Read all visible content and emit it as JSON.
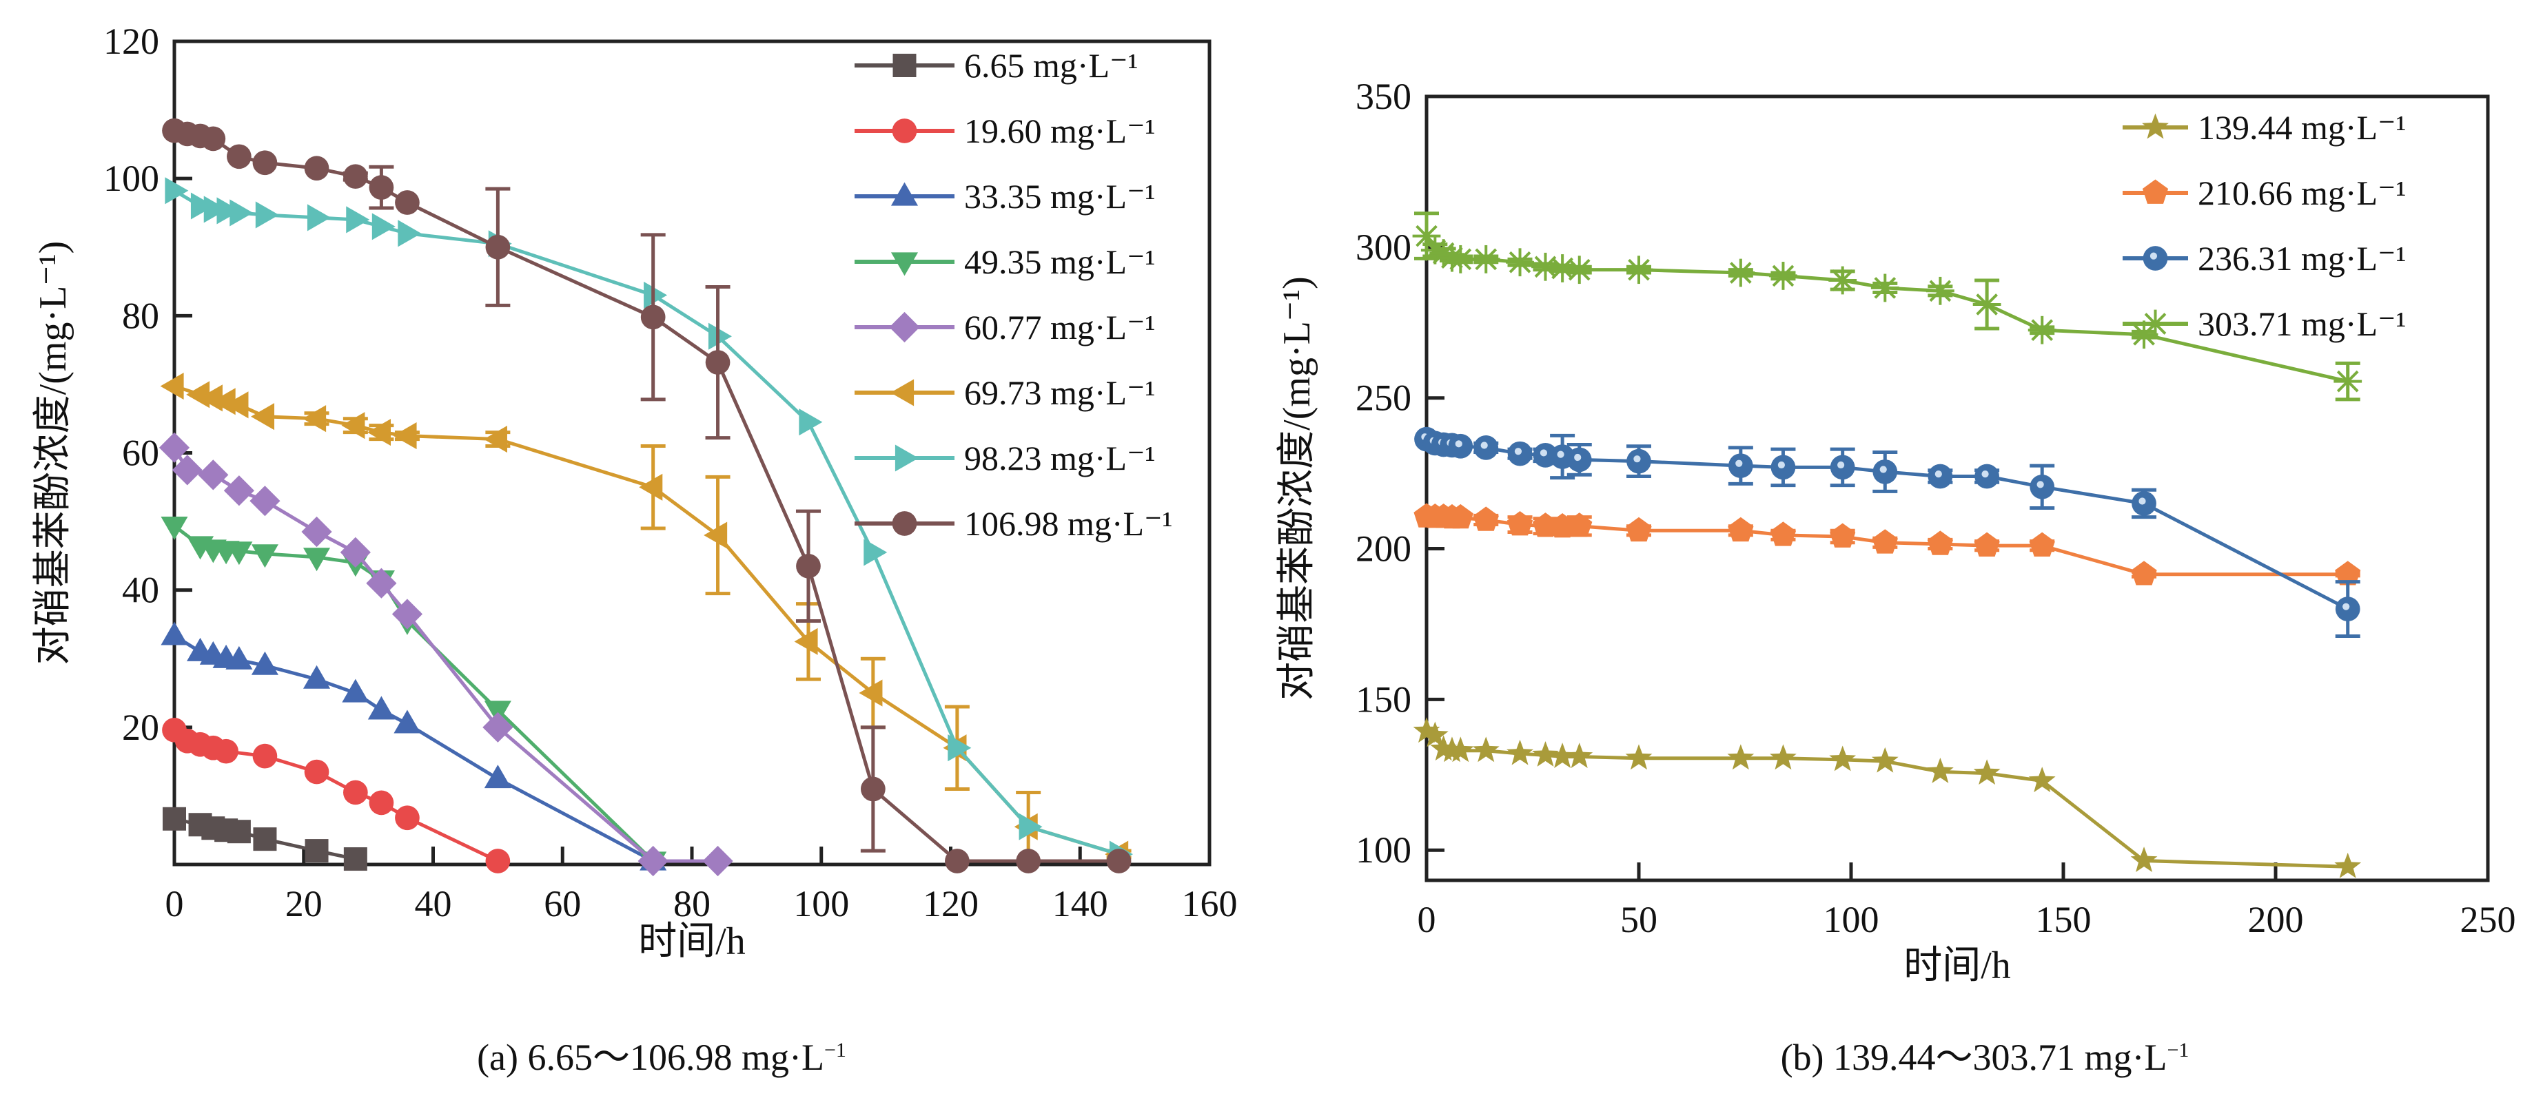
{
  "figure": {
    "panels": [
      {
        "caption": "(a) 6.65～106.98 mg·L",
        "caption_sup": "−1"
      },
      {
        "caption": "(b) 139.44～303.71 mg·L",
        "caption_sup": "−1"
      }
    ]
  },
  "chart_data": [
    {
      "type": "line",
      "id": "a",
      "title": "(a) 6.65～106.98 mg·L⁻¹",
      "xlabel": "时间/h",
      "ylabel": "对硝基苯酚浓度/(mg·L⁻¹)",
      "xlim": [
        0,
        160
      ],
      "ylim": [
        0,
        120
      ],
      "xticks": [
        0,
        20,
        40,
        60,
        80,
        100,
        120,
        140,
        160
      ],
      "yticks": [
        20,
        40,
        60,
        80,
        100,
        120
      ],
      "ytick_labels": [
        "20",
        "40",
        "60",
        "80",
        "100",
        "120"
      ],
      "xtick_labels": [
        "0",
        "20",
        "40",
        "60",
        "80",
        "100",
        "120",
        "140",
        "160"
      ],
      "grid": false,
      "legend_position": "top-right",
      "series": [
        {
          "name": "6.65 mg·L⁻¹",
          "color": "#5a5050",
          "marker": "square",
          "x": [
            0,
            4,
            6,
            8,
            10,
            14,
            22,
            28
          ],
          "y": [
            6.65,
            5.8,
            5.3,
            5.0,
            4.8,
            3.7,
            2.0,
            0.8
          ]
        },
        {
          "name": "19.60 mg·L⁻¹",
          "color": "#e84a4a",
          "marker": "circle",
          "x": [
            0,
            2,
            4,
            6,
            8,
            14,
            22,
            28,
            32,
            36,
            50
          ],
          "y": [
            19.6,
            18.0,
            17.5,
            17.0,
            16.5,
            15.8,
            13.5,
            10.5,
            9.0,
            6.8,
            0.5
          ]
        },
        {
          "name": "33.35 mg·L⁻¹",
          "color": "#4468b0",
          "marker": "triangle-up",
          "x": [
            0,
            4,
            6,
            8,
            10,
            14,
            22,
            28,
            32,
            36,
            50,
            74
          ],
          "y": [
            33.35,
            31.0,
            30.5,
            30.0,
            29.8,
            29.0,
            27.0,
            25.0,
            22.5,
            20.5,
            12.5,
            0.5
          ]
        },
        {
          "name": "49.35 mg·L⁻¹",
          "color": "#4fae6c",
          "marker": "triangle-down",
          "x": [
            0,
            4,
            6,
            8,
            10,
            14,
            22,
            28,
            32,
            36,
            50,
            74
          ],
          "y": [
            49.35,
            46.5,
            46.0,
            45.8,
            45.7,
            45.3,
            44.8,
            44.0,
            41.5,
            35.5,
            22.5,
            0.5
          ]
        },
        {
          "name": "60.77 mg·L⁻¹",
          "color": "#a07cc0",
          "marker": "diamond",
          "x": [
            0,
            2,
            6,
            10,
            14,
            22,
            28,
            32,
            36,
            50,
            74,
            84
          ],
          "y": [
            60.77,
            57.5,
            56.8,
            54.5,
            53.0,
            48.5,
            45.5,
            41.0,
            36.5,
            20.0,
            0.5,
            0.5
          ]
        },
        {
          "name": "69.73 mg·L⁻¹",
          "color": "#d49a2e",
          "marker": "triangle-left",
          "x": [
            0,
            4,
            6,
            8,
            10,
            14,
            22,
            28,
            32,
            36,
            50,
            74,
            84,
            98,
            108,
            121,
            132,
            146
          ],
          "y": [
            69.73,
            68.5,
            68.0,
            67.5,
            67.0,
            65.3,
            65.0,
            64.0,
            63.0,
            62.5,
            62.0,
            55.0,
            48.0,
            32.5,
            25.0,
            17.0,
            5.5,
            1.5
          ],
          "err": [
            0,
            0,
            0,
            0,
            0,
            0,
            0.8,
            1.0,
            1.0,
            0.5,
            1.0,
            6.0,
            8.5,
            5.5,
            5.0,
            6.0,
            5.0,
            0.5
          ]
        },
        {
          "name": "98.23 mg·L⁻¹",
          "color": "#5ebfb8",
          "marker": "triangle-right",
          "x": [
            0,
            4,
            6,
            8,
            10,
            14,
            22,
            28,
            32,
            36,
            50,
            74,
            84,
            98,
            108,
            121,
            132,
            146
          ],
          "y": [
            98.23,
            96.0,
            95.5,
            95.3,
            95.0,
            94.7,
            94.3,
            94.0,
            93.0,
            92.0,
            90.5,
            83.0,
            77.0,
            64.5,
            45.5,
            17.0,
            5.5,
            1.5
          ]
        },
        {
          "name": "106.98 mg·L⁻¹",
          "color": "#7a5252",
          "marker": "circle",
          "x": [
            0,
            2,
            4,
            6,
            10,
            14,
            22,
            28,
            32,
            36,
            50,
            74,
            84,
            98,
            108,
            121,
            132,
            146
          ],
          "y": [
            106.98,
            106.5,
            106.2,
            105.8,
            103.2,
            102.3,
            101.5,
            100.3,
            98.7,
            96.5,
            90.0,
            79.8,
            73.2,
            43.5,
            11.0,
            0.5,
            0.5,
            0.5
          ],
          "err": [
            0,
            0,
            0,
            0,
            0,
            0,
            0,
            0.5,
            3.0,
            0,
            8.5,
            12.0,
            11.0,
            8.0,
            9.0,
            0,
            0,
            0
          ]
        }
      ]
    },
    {
      "type": "line",
      "id": "b",
      "title": "(b) 139.44～303.71 mg·L⁻¹",
      "xlabel": "时间/h",
      "ylabel": "对硝基苯酚浓度/(mg·L⁻¹)",
      "xlim": [
        0,
        250
      ],
      "ylim": [
        90,
        350
      ],
      "xticks": [
        0,
        50,
        100,
        150,
        200,
        250
      ],
      "yticks": [
        100,
        150,
        200,
        250,
        300,
        350
      ],
      "ytick_labels": [
        "100",
        "150",
        "200",
        "250",
        "300",
        "350"
      ],
      "xtick_labels": [
        "0",
        "50",
        "100",
        "150",
        "200",
        "250"
      ],
      "grid": false,
      "legend_position": "top-right",
      "series": [
        {
          "name": "139.44 mg·L⁻¹",
          "color": "#a99b3a",
          "marker": "star",
          "x": [
            0,
            2,
            4,
            6,
            8,
            14,
            22,
            28,
            32,
            36,
            50,
            74,
            84,
            98,
            108,
            121,
            132,
            145,
            169,
            217
          ],
          "y": [
            139.44,
            138.0,
            133.5,
            133.0,
            133.0,
            133.0,
            132.0,
            131.5,
            131.0,
            131.0,
            130.5,
            130.5,
            130.5,
            130.0,
            129.5,
            126.0,
            125.5,
            123.0,
            96.5,
            94.5
          ]
        },
        {
          "name": "210.66 mg·L⁻¹",
          "color": "#f08040",
          "marker": "pentagon",
          "x": [
            0,
            2,
            4,
            6,
            8,
            14,
            22,
            28,
            32,
            36,
            50,
            74,
            84,
            98,
            108,
            121,
            132,
            145,
            169,
            217
          ],
          "y": [
            210.66,
            210.5,
            210.5,
            210.3,
            210.3,
            209.5,
            208.0,
            207.5,
            207.3,
            207.5,
            206.0,
            206.0,
            204.5,
            204.0,
            202.0,
            201.5,
            201.0,
            201.0,
            191.5,
            191.5
          ],
          "err": [
            0,
            0,
            0,
            0,
            0,
            1.5,
            2.5,
            2.5,
            2.5,
            3.0,
            1.5,
            1.5,
            1.5,
            2.0,
            1.5,
            1.5,
            1.5,
            1.5,
            0.8,
            0.5
          ]
        },
        {
          "name": "236.31 mg·L⁻¹",
          "color": "#3e6fa8",
          "marker": "sphere",
          "x": [
            0,
            2,
            4,
            6,
            8,
            14,
            22,
            28,
            32,
            36,
            50,
            74,
            84,
            98,
            108,
            121,
            132,
            145,
            169,
            217
          ],
          "y": [
            236.31,
            235.0,
            234.5,
            234.3,
            234.0,
            233.5,
            231.5,
            231.0,
            230.5,
            229.5,
            229.0,
            227.5,
            227.0,
            227.0,
            225.5,
            224.0,
            224.0,
            220.5,
            215.0,
            180.0
          ],
          "err": [
            0,
            0,
            0,
            0,
            0,
            1.5,
            1.5,
            2.0,
            7.0,
            5.0,
            5.0,
            6.0,
            6.0,
            6.0,
            6.5,
            2.0,
            2.0,
            7.0,
            4.5,
            9.0
          ]
        },
        {
          "name": "303.71 mg·L⁻¹",
          "color": "#7aad3c",
          "marker": "asterisk",
          "x": [
            0,
            2,
            4,
            6,
            8,
            14,
            22,
            28,
            32,
            36,
            50,
            74,
            84,
            98,
            108,
            121,
            132,
            145,
            169,
            217
          ],
          "y": [
            303.71,
            299.0,
            298.0,
            296.5,
            296.0,
            296.0,
            295.0,
            293.5,
            293.0,
            292.5,
            292.5,
            291.5,
            290.5,
            289.0,
            286.5,
            285.5,
            281.0,
            272.5,
            271.0,
            255.5
          ],
          "err": [
            7.5,
            2.0,
            1.5,
            1.0,
            1.0,
            1.0,
            1.0,
            1.0,
            1.0,
            1.0,
            1.0,
            1.0,
            1.0,
            3.0,
            1.5,
            1.5,
            8.0,
            1.0,
            1.0,
            6.0
          ]
        }
      ]
    }
  ]
}
